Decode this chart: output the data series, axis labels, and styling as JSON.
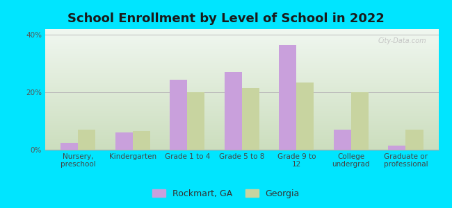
{
  "title": "School Enrollment by Level of School in 2022",
  "categories": [
    "Nursery,\npreschool",
    "Kindergarten",
    "Grade 1 to 4",
    "Grade 5 to 8",
    "Grade 9 to\n12",
    "College\nundergrad",
    "Graduate or\nprofessional"
  ],
  "rockmart_values": [
    2.5,
    6.0,
    24.5,
    27.0,
    36.5,
    7.0,
    1.5
  ],
  "georgia_values": [
    7.0,
    6.5,
    20.0,
    21.5,
    23.5,
    20.0,
    7.0
  ],
  "rockmart_color": "#c9a0dc",
  "georgia_color": "#c8d4a0",
  "background_color": "#00e5ff",
  "plot_bg_top": "#f0f7f0",
  "plot_bg_bottom": "#ccdebe",
  "ylim": [
    0,
    42
  ],
  "ytick_labels": [
    "0%",
    "20%",
    "40%"
  ],
  "ytick_vals": [
    0,
    20,
    40
  ],
  "legend_rockmart": "Rockmart, GA",
  "legend_georgia": "Georgia",
  "bar_width": 0.32,
  "title_fontsize": 13,
  "tick_fontsize": 7.5,
  "legend_fontsize": 9,
  "watermark": "City-Data.com"
}
